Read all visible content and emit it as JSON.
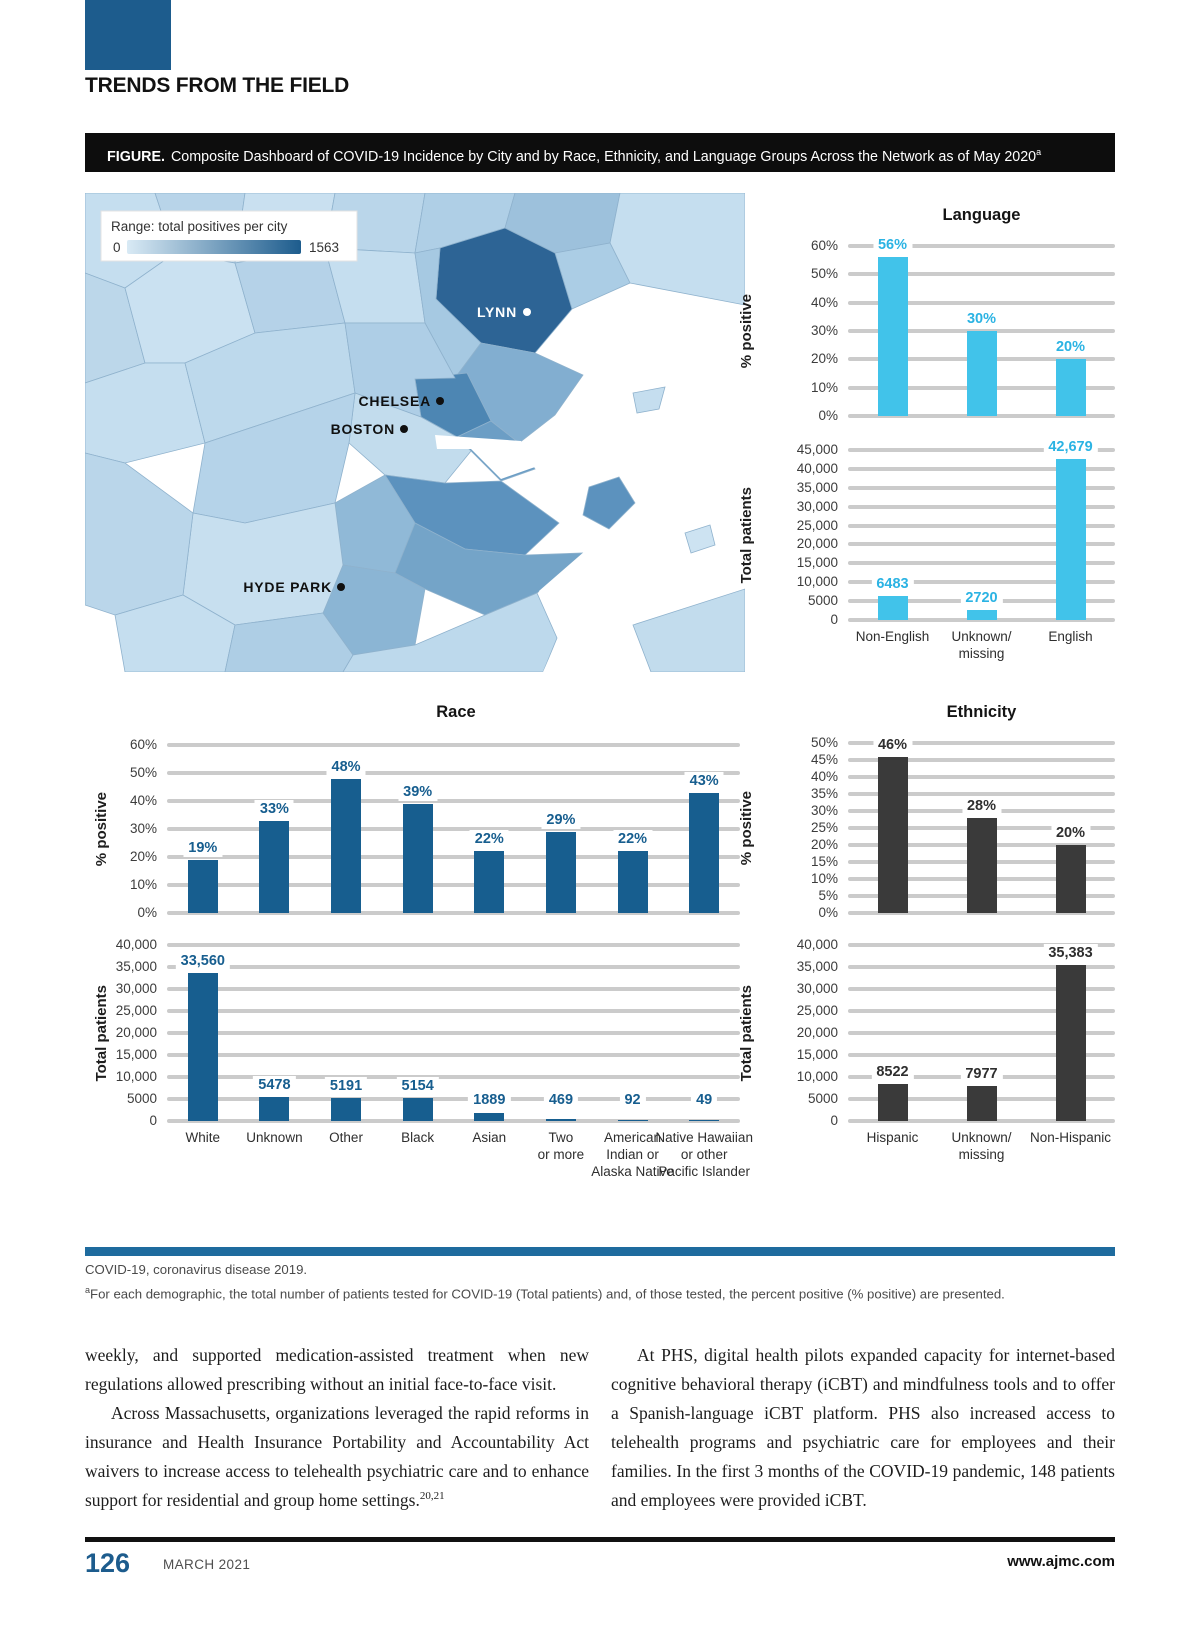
{
  "page": {
    "section_title": "TRENDS FROM THE FIELD",
    "footer": {
      "page_number": "126",
      "issue": "MARCH 2021",
      "website": "www.ajmc.com"
    },
    "colors": {
      "brand_blue": "#1d5c8d",
      "divider_blue": "#1e6b9e",
      "language_cyan": "#41c3ea",
      "race_blue": "#175e8f",
      "ethnicity_gray": "#3a3a3a",
      "gridline_gray": "#cbcbcb"
    }
  },
  "figure": {
    "caption_label": "FIGURE.",
    "caption_text": "Composite Dashboard of COVID-19 Incidence by City and by Race, Ethnicity, and Language Groups Across the Network as of May 2020",
    "caption_superscript": "a",
    "map": {
      "legend_title": "Range: total positives per city",
      "legend_min": "0",
      "legend_max": "1563",
      "legend_gradient": [
        "#d9eaf5",
        "#1d5c8d"
      ],
      "cities": [
        "LYNN",
        "CHELSEA",
        "BOSTON",
        "HYDE PARK"
      ]
    },
    "footnote_superscript": "a",
    "footnotes": [
      "COVID-19, coronavirus disease 2019.",
      "For each demographic, the total number of patients tested for COVID-19 (Total patients) and, of those tested, the percent positive (% positive) are presented."
    ]
  },
  "chart_data": [
    {
      "id": "language-pct",
      "type": "bar",
      "title": "Language",
      "ylabel": "% positive",
      "categories": [
        "Non-English",
        "Unknown/missing",
        "English"
      ],
      "values": [
        56,
        30,
        20
      ],
      "value_labels": [
        "56%",
        "30%",
        "20%"
      ],
      "ymax": 60,
      "yticks": [
        "60%",
        "50%",
        "40%",
        "30%",
        "20%",
        "10%",
        "0%"
      ],
      "bar_color": "#41c3ea",
      "value_color": "#2bb3e3",
      "grid": true,
      "legend": "none"
    },
    {
      "id": "language-total",
      "type": "bar",
      "title": "Language",
      "ylabel": "Total patients",
      "categories": [
        "Non-English",
        "Unknown/missing",
        "English"
      ],
      "category_lines": [
        [
          "Non-English"
        ],
        [
          "Unknown/",
          "missing"
        ],
        [
          "English"
        ]
      ],
      "values": [
        6483,
        2720,
        42679
      ],
      "value_labels": [
        "6483",
        "2720",
        "42,679"
      ],
      "ymax": 45000,
      "yticks": [
        "45,000",
        "40,000",
        "35,000",
        "30,000",
        "25,000",
        "20,000",
        "15,000",
        "10,000",
        "5000",
        "0"
      ],
      "bar_color": "#41c3ea",
      "value_color": "#2bb3e3",
      "grid": true,
      "legend": "none"
    },
    {
      "id": "race-pct",
      "type": "bar",
      "title": "Race",
      "ylabel": "% positive",
      "categories": [
        "White",
        "Unknown",
        "Other",
        "Black",
        "Asian",
        "Two or more",
        "American Indian or Alaska Native",
        "Native Hawaiian or other Pacific Islander"
      ],
      "values": [
        19,
        33,
        48,
        39,
        22,
        29,
        22,
        43
      ],
      "value_labels": [
        "19%",
        "33%",
        "48%",
        "39%",
        "22%",
        "29%",
        "22%",
        "43%"
      ],
      "ymax": 60,
      "yticks": [
        "60%",
        "50%",
        "40%",
        "30%",
        "20%",
        "10%",
        "0%"
      ],
      "bar_color": "#175e8f",
      "value_color": "#175e8f",
      "grid": true,
      "legend": "none"
    },
    {
      "id": "race-total",
      "type": "bar",
      "title": "Race",
      "ylabel": "Total patients",
      "categories": [
        "White",
        "Unknown",
        "Other",
        "Black",
        "Asian",
        "Two or more",
        "American Indian or Alaska Native",
        "Native Hawaiian or other Pacific Islander"
      ],
      "category_lines": [
        [
          "White"
        ],
        [
          "Unknown"
        ],
        [
          "Other"
        ],
        [
          "Black"
        ],
        [
          "Asian"
        ],
        [
          "Two",
          "or more"
        ],
        [
          "American",
          "Indian or",
          "Alaska Native"
        ],
        [
          "Native Hawaiian",
          "or other",
          "Pacific Islander"
        ]
      ],
      "values": [
        33560,
        5478,
        5191,
        5154,
        1889,
        469,
        92,
        49
      ],
      "value_labels": [
        "33,560",
        "5478",
        "5191",
        "5154",
        "1889",
        "469",
        "92",
        "49"
      ],
      "ymax": 40000,
      "yticks": [
        "40,000",
        "35,000",
        "30,000",
        "25,000",
        "20,000",
        "15,000",
        "10,000",
        "5000",
        "0"
      ],
      "bar_color": "#175e8f",
      "value_color": "#175e8f",
      "grid": true,
      "legend": "none"
    },
    {
      "id": "ethnicity-pct",
      "type": "bar",
      "title": "Ethnicity",
      "ylabel": "% positive",
      "categories": [
        "Hispanic",
        "Unknown/missing",
        "Non-Hispanic"
      ],
      "values": [
        46,
        28,
        20
      ],
      "value_labels": [
        "46%",
        "28%",
        "20%"
      ],
      "ymax": 50,
      "yticks": [
        "50%",
        "45%",
        "40%",
        "35%",
        "30%",
        "25%",
        "20%",
        "15%",
        "10%",
        "5%",
        "0%"
      ],
      "bar_color": "#3a3a3a",
      "value_color": "#2f2f2f",
      "grid": true,
      "legend": "none"
    },
    {
      "id": "ethnicity-total",
      "type": "bar",
      "title": "Ethnicity",
      "ylabel": "Total patients",
      "categories": [
        "Hispanic",
        "Unknown/missing",
        "Non-Hispanic"
      ],
      "category_lines": [
        [
          "Hispanic"
        ],
        [
          "Unknown/",
          "missing"
        ],
        [
          "Non-Hispanic"
        ]
      ],
      "values": [
        8522,
        7977,
        35383
      ],
      "value_labels": [
        "8522",
        "7977",
        "35,383"
      ],
      "ymax": 40000,
      "yticks": [
        "40,000",
        "35,000",
        "30,000",
        "25,000",
        "20,000",
        "15,000",
        "10,000",
        "5000",
        "0"
      ],
      "bar_color": "#3a3a3a",
      "value_color": "#2f2f2f",
      "grid": true,
      "legend": "none"
    }
  ],
  "body": {
    "left_column": [
      {
        "text": "weekly, and supported medication-assisted treatment when new regulations allowed prescribing without an initial face-to-face visit."
      },
      {
        "text": "Across Massachusetts, organizations leveraged the rapid reforms in insurance and Health Insurance Portability and Accountability Act waivers to increase access to telehealth psychiatric care and to enhance support for residential and group home settings.",
        "citation": "20,21"
      }
    ],
    "right_column": [
      {
        "text": "At PHS, digital health pilots expanded capacity for internet-based cognitive behavioral therapy (iCBT) and mindfulness tools and to offer a Spanish-language iCBT platform. PHS also increased access to telehealth programs and psychiatric care for employees and their families. In the first 3 months of the COVID-19 pandemic, 148 patients and employees were provided iCBT."
      }
    ]
  }
}
